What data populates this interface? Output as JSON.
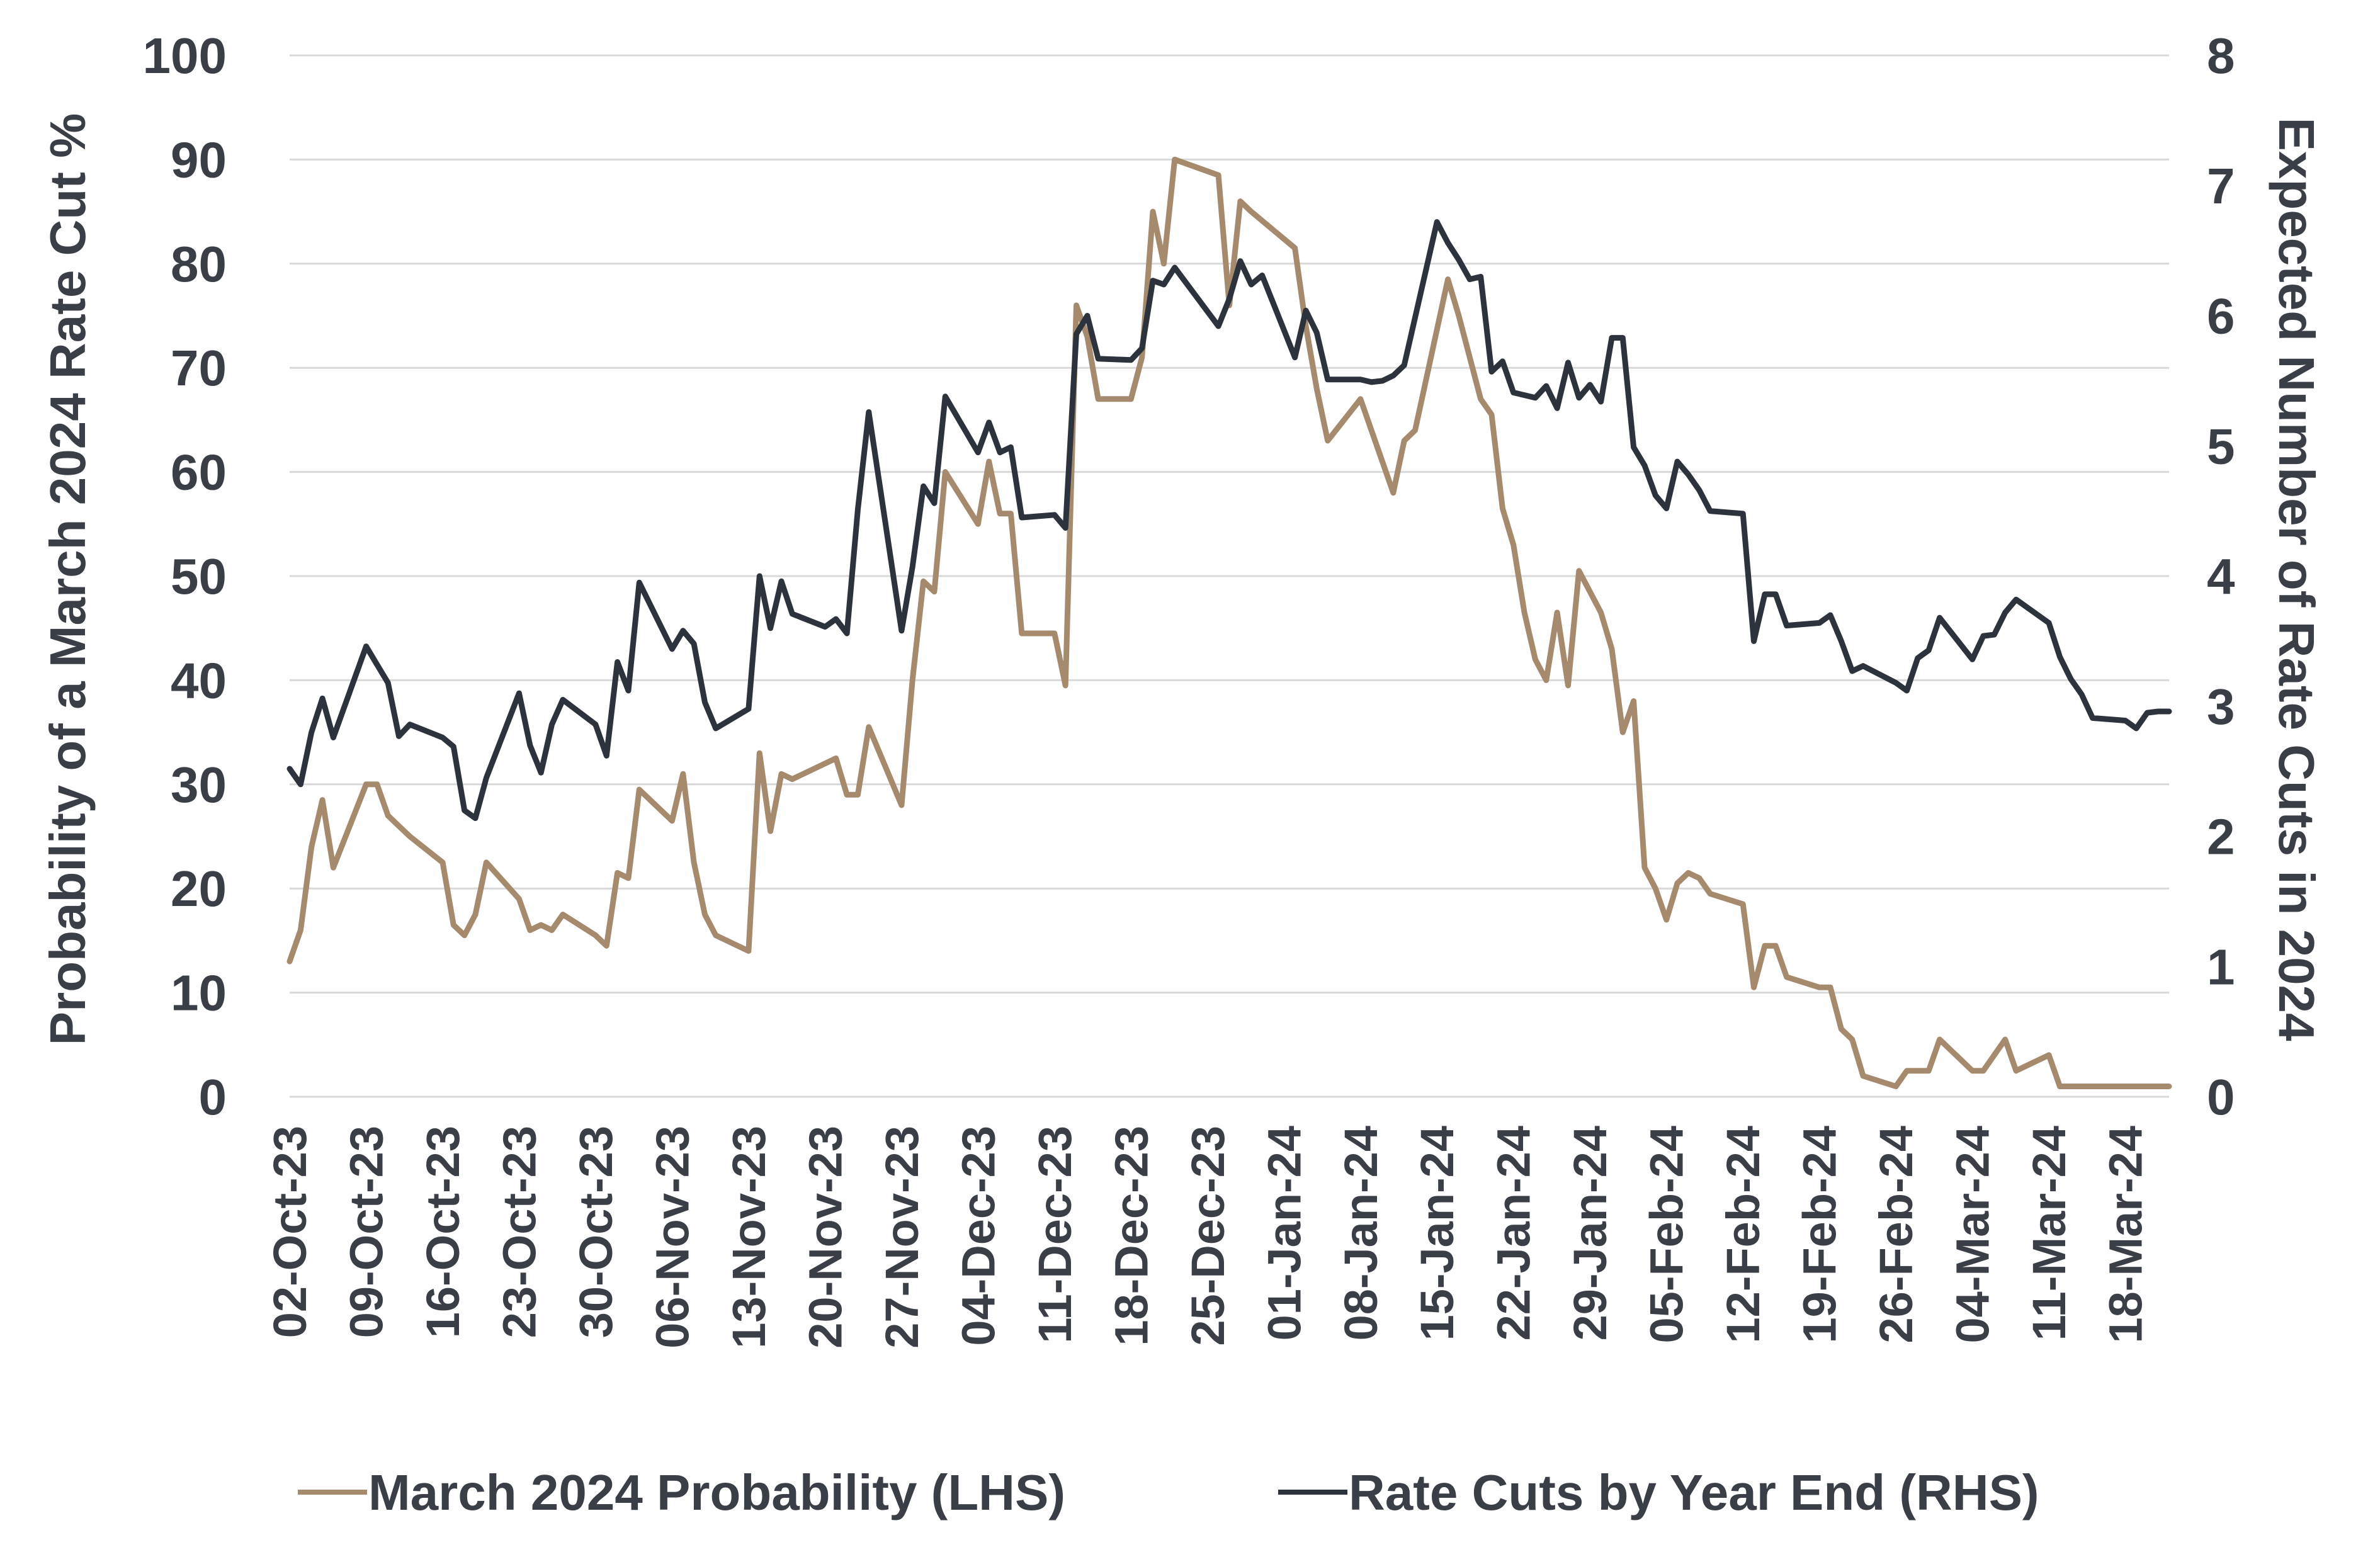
{
  "chart_data": {
    "type": "line",
    "title": "",
    "y_left_label": "Probability of a March 2024 Rate Cut %",
    "y_right_label": "Expected Number of Rate Cuts in 2024",
    "y_left_ticks": [
      "0",
      "10",
      "20",
      "30",
      "40",
      "50",
      "60",
      "70",
      "80",
      "90",
      "100"
    ],
    "y_right_ticks": [
      "0",
      "1",
      "2",
      "3",
      "4",
      "5",
      "6",
      "7",
      "8"
    ],
    "ylim_left": [
      0,
      100
    ],
    "ylim_right": [
      0,
      8
    ],
    "x_tick_labels": [
      "02-Oct-23",
      "09-Oct-23",
      "16-Oct-23",
      "23-Oct-23",
      "30-Oct-23",
      "06-Nov-23",
      "13-Nov-23",
      "20-Nov-23",
      "27-Nov-23",
      "04-Dec-23",
      "11-Dec-23",
      "18-Dec-23",
      "25-Dec-23",
      "01-Jan-24",
      "08-Jan-24",
      "15-Jan-24",
      "22-Jan-24",
      "29-Jan-24",
      "05-Feb-24",
      "12-Feb-24",
      "19-Feb-24",
      "26-Feb-24",
      "04-Mar-24",
      "11-Mar-24",
      "18-Mar-24"
    ],
    "xlim": [
      "2023-10-02",
      "2024-03-22"
    ],
    "grid": true,
    "legend_position": "bottom",
    "series": [
      {
        "name": "March 2024 Probability (LHS)",
        "axis": "left",
        "color": "#a68a6d",
        "points": [
          [
            "2023-10-02",
            13
          ],
          [
            "2023-10-03",
            16
          ],
          [
            "2023-10-04",
            24
          ],
          [
            "2023-10-05",
            28.5
          ],
          [
            "2023-10-06",
            22
          ],
          [
            "2023-10-09",
            30
          ],
          [
            "2023-10-10",
            30
          ],
          [
            "2023-10-11",
            27
          ],
          [
            "2023-10-12",
            26
          ],
          [
            "2023-10-13",
            25
          ],
          [
            "2023-10-16",
            22.5
          ],
          [
            "2023-10-17",
            16.5
          ],
          [
            "2023-10-18",
            15.5
          ],
          [
            "2023-10-19",
            17.5
          ],
          [
            "2023-10-20",
            22.5
          ],
          [
            "2023-10-23",
            19
          ],
          [
            "2023-10-24",
            16
          ],
          [
            "2023-10-25",
            16.5
          ],
          [
            "2023-10-26",
            16
          ],
          [
            "2023-10-27",
            17.5
          ],
          [
            "2023-10-30",
            15.5
          ],
          [
            "2023-10-31",
            14.5
          ],
          [
            "2023-11-01",
            21.5
          ],
          [
            "2023-11-02",
            21
          ],
          [
            "2023-11-03",
            29.5
          ],
          [
            "2023-11-06",
            26.5
          ],
          [
            "2023-11-07",
            31
          ],
          [
            "2023-11-08",
            22.5
          ],
          [
            "2023-11-09",
            17.5
          ],
          [
            "2023-11-10",
            15.5
          ],
          [
            "2023-11-13",
            14
          ],
          [
            "2023-11-14",
            33
          ],
          [
            "2023-11-15",
            25.5
          ],
          [
            "2023-11-16",
            31
          ],
          [
            "2023-11-17",
            30.5
          ],
          [
            "2023-11-20",
            32
          ],
          [
            "2023-11-21",
            32.5
          ],
          [
            "2023-11-22",
            29
          ],
          [
            "2023-11-23",
            29
          ],
          [
            "2023-11-24",
            35.5
          ],
          [
            "2023-11-27",
            28
          ],
          [
            "2023-11-28",
            40
          ],
          [
            "2023-11-29",
            49.5
          ],
          [
            "2023-11-30",
            48.5
          ],
          [
            "2023-12-01",
            60
          ],
          [
            "2023-12-04",
            55
          ],
          [
            "2023-12-05",
            61
          ],
          [
            "2023-12-06",
            56
          ],
          [
            "2023-12-07",
            56
          ],
          [
            "2023-12-08",
            44.5
          ],
          [
            "2023-12-11",
            44.5
          ],
          [
            "2023-12-12",
            39.5
          ],
          [
            "2023-12-13",
            76
          ],
          [
            "2023-12-14",
            73
          ],
          [
            "2023-12-15",
            67
          ],
          [
            "2023-12-18",
            67
          ],
          [
            "2023-12-19",
            71
          ],
          [
            "2023-12-20",
            85
          ],
          [
            "2023-12-21",
            80
          ],
          [
            "2023-12-22",
            90
          ],
          [
            "2023-12-26",
            88.5
          ],
          [
            "2023-12-27",
            76
          ],
          [
            "2023-12-28",
            86
          ],
          [
            "2023-12-29",
            85
          ],
          [
            "2024-01-02",
            81.5
          ],
          [
            "2024-01-03",
            74
          ],
          [
            "2024-01-04",
            68
          ],
          [
            "2024-01-05",
            63
          ],
          [
            "2024-01-08",
            67
          ],
          [
            "2024-01-09",
            64
          ],
          [
            "2024-01-10",
            61
          ],
          [
            "2024-01-11",
            58
          ],
          [
            "2024-01-12",
            63
          ],
          [
            "2024-01-13",
            64
          ],
          [
            "2024-01-16",
            78.5
          ],
          [
            "2024-01-17",
            75
          ],
          [
            "2024-01-18",
            71
          ],
          [
            "2024-01-19",
            67
          ],
          [
            "2024-01-20",
            65.5
          ],
          [
            "2024-01-21",
            56.5
          ],
          [
            "2024-01-22",
            53
          ],
          [
            "2024-01-23",
            46.5
          ],
          [
            "2024-01-24",
            42
          ],
          [
            "2024-01-25",
            40
          ],
          [
            "2024-01-26",
            46.5
          ],
          [
            "2024-01-27",
            39.5
          ],
          [
            "2024-01-28",
            50.5
          ],
          [
            "2024-01-29",
            48.5
          ],
          [
            "2024-01-30",
            46.5
          ],
          [
            "2024-01-31",
            43
          ],
          [
            "2024-02-01",
            35
          ],
          [
            "2024-02-02",
            38
          ],
          [
            "2024-02-03",
            22
          ],
          [
            "2024-02-04",
            20
          ],
          [
            "2024-02-05",
            17
          ],
          [
            "2024-02-06",
            20.5
          ],
          [
            "2024-02-07",
            21.5
          ],
          [
            "2024-02-08",
            21
          ],
          [
            "2024-02-09",
            19.5
          ],
          [
            "2024-02-12",
            18.5
          ],
          [
            "2024-02-13",
            10.5
          ],
          [
            "2024-02-14",
            14.5
          ],
          [
            "2024-02-15",
            14.5
          ],
          [
            "2024-02-16",
            11.5
          ],
          [
            "2024-02-19",
            10.5
          ],
          [
            "2024-02-20",
            10.5
          ],
          [
            "2024-02-21",
            6.5
          ],
          [
            "2024-02-22",
            5.5
          ],
          [
            "2024-02-23",
            2
          ],
          [
            "2024-02-26",
            1
          ],
          [
            "2024-02-27",
            2.5
          ],
          [
            "2024-02-28",
            2.5
          ],
          [
            "2024-02-29",
            2.5
          ],
          [
            "2024-03-01",
            5.5
          ],
          [
            "2024-03-04",
            2.5
          ],
          [
            "2024-03-05",
            2.5
          ],
          [
            "2024-03-06",
            4
          ],
          [
            "2024-03-07",
            5.5
          ],
          [
            "2024-03-08",
            2.5
          ],
          [
            "2024-03-11",
            4
          ],
          [
            "2024-03-12",
            1
          ],
          [
            "2024-03-13",
            1
          ],
          [
            "2024-03-14",
            1
          ],
          [
            "2024-03-15",
            1
          ],
          [
            "2024-03-18",
            1
          ],
          [
            "2024-03-19",
            1
          ],
          [
            "2024-03-20",
            1
          ],
          [
            "2024-03-21",
            1
          ],
          [
            "2024-03-22",
            1
          ]
        ]
      },
      {
        "name": "Rate Cuts by Year End (RHS)",
        "axis": "right",
        "color": "#2d333c",
        "points": [
          [
            "2023-10-02",
            2.52
          ],
          [
            "2023-10-03",
            2.4
          ],
          [
            "2023-10-04",
            2.8
          ],
          [
            "2023-10-05",
            3.06
          ],
          [
            "2023-10-06",
            2.76
          ],
          [
            "2023-10-09",
            3.46
          ],
          [
            "2023-10-10",
            3.32
          ],
          [
            "2023-10-11",
            3.18
          ],
          [
            "2023-10-12",
            2.77
          ],
          [
            "2023-10-13",
            2.86
          ],
          [
            "2023-10-16",
            2.76
          ],
          [
            "2023-10-17",
            2.69
          ],
          [
            "2023-10-18",
            2.2
          ],
          [
            "2023-10-19",
            2.14
          ],
          [
            "2023-10-20",
            2.45
          ],
          [
            "2023-10-23",
            3.1
          ],
          [
            "2023-10-24",
            2.7
          ],
          [
            "2023-10-25",
            2.49
          ],
          [
            "2023-10-26",
            2.86
          ],
          [
            "2023-10-27",
            3.05
          ],
          [
            "2023-10-30",
            2.86
          ],
          [
            "2023-10-31",
            2.62
          ],
          [
            "2023-11-01",
            3.34
          ],
          [
            "2023-11-02",
            3.12
          ],
          [
            "2023-11-03",
            3.95
          ],
          [
            "2023-11-06",
            3.44
          ],
          [
            "2023-11-07",
            3.58
          ],
          [
            "2023-11-08",
            3.48
          ],
          [
            "2023-11-09",
            3.03
          ],
          [
            "2023-11-10",
            2.83
          ],
          [
            "2023-11-13",
            2.98
          ],
          [
            "2023-11-14",
            4.0
          ],
          [
            "2023-11-15",
            3.6
          ],
          [
            "2023-11-16",
            3.96
          ],
          [
            "2023-11-17",
            3.71
          ],
          [
            "2023-11-20",
            3.61
          ],
          [
            "2023-11-21",
            3.67
          ],
          [
            "2023-11-22",
            3.56
          ],
          [
            "2023-11-23",
            4.51
          ],
          [
            "2023-11-24",
            5.26
          ],
          [
            "2023-11-27",
            3.58
          ],
          [
            "2023-11-28",
            4.07
          ],
          [
            "2023-11-29",
            4.69
          ],
          [
            "2023-11-30",
            4.56
          ],
          [
            "2023-12-01",
            5.38
          ],
          [
            "2023-12-04",
            4.95
          ],
          [
            "2023-12-05",
            5.18
          ],
          [
            "2023-12-06",
            4.95
          ],
          [
            "2023-12-07",
            4.99
          ],
          [
            "2023-12-08",
            4.45
          ],
          [
            "2023-12-11",
            4.47
          ],
          [
            "2023-12-12",
            4.37
          ],
          [
            "2023-12-13",
            5.86
          ],
          [
            "2023-12-14",
            6.0
          ],
          [
            "2023-12-15",
            5.67
          ],
          [
            "2023-12-18",
            5.66
          ],
          [
            "2023-12-19",
            5.75
          ],
          [
            "2023-12-20",
            6.27
          ],
          [
            "2023-12-21",
            6.24
          ],
          [
            "2023-12-22",
            6.37
          ],
          [
            "2023-12-26",
            5.92
          ],
          [
            "2023-12-27",
            6.13
          ],
          [
            "2023-12-28",
            6.42
          ],
          [
            "2023-12-29",
            6.24
          ],
          [
            "2023-12-30",
            6.31
          ],
          [
            "2024-01-02",
            5.68
          ],
          [
            "2024-01-03",
            6.04
          ],
          [
            "2024-01-04",
            5.87
          ],
          [
            "2024-01-05",
            5.51
          ],
          [
            "2024-01-08",
            5.51
          ],
          [
            "2024-01-09",
            5.49
          ],
          [
            "2024-01-10",
            5.5
          ],
          [
            "2024-01-11",
            5.54
          ],
          [
            "2024-01-12",
            5.62
          ],
          [
            "2024-01-15",
            6.72
          ],
          [
            "2024-01-16",
            6.56
          ],
          [
            "2024-01-17",
            6.43
          ],
          [
            "2024-01-18",
            6.28
          ],
          [
            "2024-01-19",
            6.3
          ],
          [
            "2024-01-20",
            5.57
          ],
          [
            "2024-01-21",
            5.65
          ],
          [
            "2024-01-22",
            5.41
          ],
          [
            "2024-01-23",
            5.39
          ],
          [
            "2024-01-24",
            5.37
          ],
          [
            "2024-01-25",
            5.46
          ],
          [
            "2024-01-26",
            5.29
          ],
          [
            "2024-01-27",
            5.64
          ],
          [
            "2024-01-28",
            5.37
          ],
          [
            "2024-01-29",
            5.47
          ],
          [
            "2024-01-30",
            5.34
          ],
          [
            "2024-01-31",
            5.83
          ],
          [
            "2024-02-01",
            5.83
          ],
          [
            "2024-02-02",
            4.99
          ],
          [
            "2024-02-03",
            4.85
          ],
          [
            "2024-02-04",
            4.62
          ],
          [
            "2024-02-05",
            4.52
          ],
          [
            "2024-02-06",
            4.88
          ],
          [
            "2024-02-07",
            4.78
          ],
          [
            "2024-02-08",
            4.66
          ],
          [
            "2024-02-09",
            4.5
          ],
          [
            "2024-02-12",
            4.48
          ],
          [
            "2024-02-13",
            3.5
          ],
          [
            "2024-02-14",
            3.86
          ],
          [
            "2024-02-15",
            3.86
          ],
          [
            "2024-02-16",
            3.62
          ],
          [
            "2024-02-19",
            3.64
          ],
          [
            "2024-02-20",
            3.7
          ],
          [
            "2024-02-21",
            3.5
          ],
          [
            "2024-02-22",
            3.27
          ],
          [
            "2024-02-23",
            3.31
          ],
          [
            "2024-02-26",
            3.18
          ],
          [
            "2024-02-27",
            3.12
          ],
          [
            "2024-02-28",
            3.37
          ],
          [
            "2024-02-29",
            3.43
          ],
          [
            "2024-03-01",
            3.68
          ],
          [
            "2024-03-04",
            3.36
          ],
          [
            "2024-03-05",
            3.54
          ],
          [
            "2024-03-06",
            3.55
          ],
          [
            "2024-03-07",
            3.72
          ],
          [
            "2024-03-08",
            3.82
          ],
          [
            "2024-03-11",
            3.64
          ],
          [
            "2024-03-12",
            3.38
          ],
          [
            "2024-03-13",
            3.21
          ],
          [
            "2024-03-14",
            3.09
          ],
          [
            "2024-03-15",
            2.91
          ],
          [
            "2024-03-18",
            2.89
          ],
          [
            "2024-03-19",
            2.83
          ],
          [
            "2024-03-20",
            2.95
          ],
          [
            "2024-03-21",
            2.96
          ],
          [
            "2024-03-22",
            2.96
          ]
        ]
      }
    ]
  }
}
